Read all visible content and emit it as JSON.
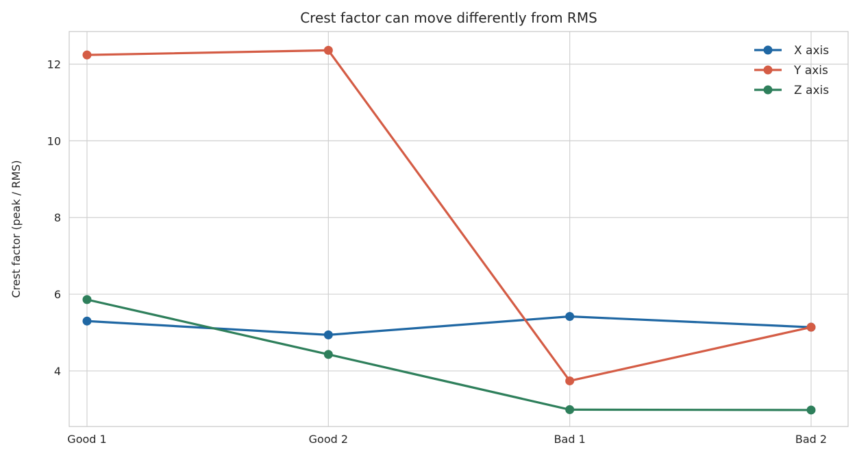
{
  "chart_data": {
    "type": "line",
    "title": "Crest factor can move differently from RMS",
    "xlabel": "",
    "ylabel": "Crest factor (peak / RMS)",
    "categories": [
      "Good 1",
      "Good 2",
      "Bad 1",
      "Bad 2"
    ],
    "ylim": [
      2.55,
      12.85
    ],
    "yticks": [
      4,
      6,
      8,
      10,
      12
    ],
    "grid": true,
    "legend_position": "top-right",
    "series": [
      {
        "name": "X axis",
        "color": "#1f67a3",
        "values": [
          5.3,
          4.94,
          5.42,
          5.14
        ]
      },
      {
        "name": "Y axis",
        "color": "#d45c45",
        "values": [
          12.24,
          12.36,
          3.74,
          5.14
        ]
      },
      {
        "name": "Z axis",
        "color": "#2e7f5b",
        "values": [
          5.86,
          4.43,
          2.99,
          2.98
        ]
      }
    ]
  }
}
